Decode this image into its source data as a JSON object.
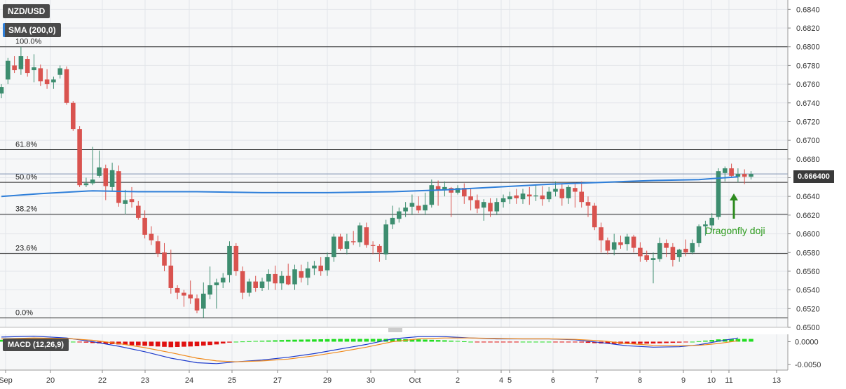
{
  "header": {
    "symbol": "NZD/USD",
    "indicator": "SMA (200,0)",
    "macd": "MACD (12,26,9)"
  },
  "last_price": "0.666400",
  "annotation": "Dragonfly doji",
  "colors": {
    "bull": "#3d8d6f",
    "bear": "#d9534f",
    "sma": "#2f7fd9",
    "macd_line": "#1e3ccc",
    "signal_line": "#f08a1c",
    "hist_pos": "#22dd22",
    "hist_neg": "#e01010",
    "arrow": "#2e8b1f"
  },
  "chart_data": {
    "type": "candlestick",
    "price_axis": {
      "ylim": [
        0.65,
        0.685
      ],
      "ticks": [
        "0.6500",
        "0.6520",
        "0.6540",
        "0.6560",
        "0.6580",
        "0.6600",
        "0.6620",
        "0.6640",
        "0.6660",
        "0.6680",
        "0.6700",
        "0.6720",
        "0.6740",
        "0.6760",
        "0.6780",
        "0.6800",
        "0.6820",
        "0.6840"
      ]
    },
    "macd_axis": {
      "ylim": [
        -0.0062,
        0.0016
      ],
      "ticks": [
        "0.0000",
        "-0.0050"
      ]
    },
    "x_ticks": [
      "Sep",
      "20",
      "22",
      "23",
      "24",
      "25",
      "27",
      "29",
      "30",
      "Oct",
      "2",
      "4",
      "5",
      "6",
      "7",
      "8",
      "9",
      "10",
      "11",
      "13"
    ],
    "fibonacci": [
      {
        "label": "100.0%",
        "price": 0.68
      },
      {
        "label": "61.8%",
        "price": 0.669
      },
      {
        "label": "50.0%",
        "price": 0.6655
      },
      {
        "label": "38.2%",
        "price": 0.6621
      },
      {
        "label": "23.6%",
        "price": 0.6579
      },
      {
        "label": "0.0%",
        "price": 0.651
      }
    ],
    "current_price": 0.6664,
    "candles": [
      [
        0.675,
        0.676,
        0.6745,
        0.6757
      ],
      [
        0.6765,
        0.6788,
        0.676,
        0.6785
      ],
      [
        0.678,
        0.679,
        0.6772,
        0.6775
      ],
      [
        0.6776,
        0.68,
        0.677,
        0.679
      ],
      [
        0.6787,
        0.679,
        0.6768,
        0.6772
      ],
      [
        0.6775,
        0.6792,
        0.6762,
        0.6778
      ],
      [
        0.6777,
        0.6781,
        0.6758,
        0.6763
      ],
      [
        0.6765,
        0.6776,
        0.6755,
        0.676
      ],
      [
        0.6762,
        0.6768,
        0.6755,
        0.6765
      ],
      [
        0.677,
        0.678,
        0.6766,
        0.6777
      ],
      [
        0.6776,
        0.6779,
        0.6738,
        0.674
      ],
      [
        0.674,
        0.6742,
        0.671,
        0.6712
      ],
      [
        0.6712,
        0.6715,
        0.665,
        0.6652
      ],
      [
        0.6652,
        0.666,
        0.665,
        0.6654
      ],
      [
        0.6654,
        0.6693,
        0.6652,
        0.6658
      ],
      [
        0.6662,
        0.6689,
        0.666,
        0.6671
      ],
      [
        0.667,
        0.6674,
        0.6636,
        0.6651
      ],
      [
        0.665,
        0.6676,
        0.6645,
        0.6668
      ],
      [
        0.6667,
        0.6673,
        0.6629,
        0.6633
      ],
      [
        0.6632,
        0.6647,
        0.6621,
        0.6636
      ],
      [
        0.6637,
        0.665,
        0.6628,
        0.6634
      ],
      [
        0.663,
        0.6635,
        0.6615,
        0.6617
      ],
      [
        0.6617,
        0.6625,
        0.6595,
        0.6599
      ],
      [
        0.66,
        0.6608,
        0.6588,
        0.6593
      ],
      [
        0.6592,
        0.6598,
        0.6575,
        0.6579
      ],
      [
        0.658,
        0.659,
        0.656,
        0.6566
      ],
      [
        0.6566,
        0.6583,
        0.6536,
        0.6542
      ],
      [
        0.6542,
        0.6545,
        0.653,
        0.6537
      ],
      [
        0.6537,
        0.654,
        0.6522,
        0.6534
      ],
      [
        0.6535,
        0.655,
        0.6525,
        0.6531
      ],
      [
        0.6531,
        0.6535,
        0.6515,
        0.6518
      ],
      [
        0.652,
        0.6548,
        0.651,
        0.6536
      ],
      [
        0.6535,
        0.6565,
        0.653,
        0.6545
      ],
      [
        0.6545,
        0.6552,
        0.652,
        0.6548
      ],
      [
        0.6548,
        0.6558,
        0.6542,
        0.6553
      ],
      [
        0.6556,
        0.6592,
        0.6548,
        0.6587
      ],
      [
        0.6587,
        0.659,
        0.6555,
        0.656
      ],
      [
        0.656,
        0.6565,
        0.653,
        0.6537
      ],
      [
        0.6537,
        0.6552,
        0.6533,
        0.6549
      ],
      [
        0.6549,
        0.6555,
        0.6538,
        0.6542
      ],
      [
        0.6542,
        0.6553,
        0.6539,
        0.6549
      ],
      [
        0.6549,
        0.6562,
        0.654,
        0.6557
      ],
      [
        0.6557,
        0.6566,
        0.654,
        0.6547
      ],
      [
        0.6547,
        0.656,
        0.654,
        0.6555
      ],
      [
        0.6555,
        0.6568,
        0.6545,
        0.6546
      ],
      [
        0.6546,
        0.6567,
        0.654,
        0.6562
      ],
      [
        0.656,
        0.6567,
        0.6548,
        0.6553
      ],
      [
        0.6553,
        0.657,
        0.6545,
        0.6563
      ],
      [
        0.6563,
        0.6571,
        0.6556,
        0.6566
      ],
      [
        0.6566,
        0.6575,
        0.6555,
        0.656
      ],
      [
        0.6561,
        0.658,
        0.6555,
        0.6575
      ],
      [
        0.6575,
        0.66,
        0.657,
        0.6597
      ],
      [
        0.6597,
        0.66,
        0.6582,
        0.6584
      ],
      [
        0.6584,
        0.66,
        0.6578,
        0.6592
      ],
      [
        0.6592,
        0.6603,
        0.6588,
        0.6591
      ],
      [
        0.6591,
        0.6612,
        0.6586,
        0.6609
      ],
      [
        0.6607,
        0.6612,
        0.6585,
        0.6588
      ],
      [
        0.6588,
        0.6592,
        0.6578,
        0.6587
      ],
      [
        0.6587,
        0.6589,
        0.657,
        0.658
      ],
      [
        0.6578,
        0.6615,
        0.6572,
        0.661
      ],
      [
        0.661,
        0.663,
        0.6605,
        0.6617
      ],
      [
        0.6616,
        0.6628,
        0.6612,
        0.6624
      ],
      [
        0.6624,
        0.6634,
        0.6618,
        0.6628
      ],
      [
        0.6629,
        0.6642,
        0.662,
        0.6633
      ],
      [
        0.663,
        0.664,
        0.6622,
        0.6625
      ],
      [
        0.6625,
        0.6644,
        0.662,
        0.6631
      ],
      [
        0.6631,
        0.6658,
        0.6628,
        0.6652
      ],
      [
        0.6651,
        0.6657,
        0.663,
        0.6647
      ],
      [
        0.6647,
        0.6656,
        0.664,
        0.665
      ],
      [
        0.6649,
        0.665,
        0.6618,
        0.6644
      ],
      [
        0.6644,
        0.6652,
        0.6642,
        0.6649
      ],
      [
        0.6649,
        0.6654,
        0.6632,
        0.664
      ],
      [
        0.664,
        0.6648,
        0.6625,
        0.6636
      ],
      [
        0.6636,
        0.6642,
        0.6622,
        0.6627
      ],
      [
        0.6628,
        0.6637,
        0.6614,
        0.6634
      ],
      [
        0.6633,
        0.6638,
        0.6618,
        0.6624
      ],
      [
        0.6624,
        0.6638,
        0.662,
        0.6634
      ],
      [
        0.6634,
        0.6642,
        0.6628,
        0.6638
      ],
      [
        0.6637,
        0.6645,
        0.6632,
        0.664
      ],
      [
        0.6641,
        0.6648,
        0.6632,
        0.6638
      ],
      [
        0.6637,
        0.6648,
        0.6632,
        0.6643
      ],
      [
        0.6642,
        0.665,
        0.6631,
        0.664
      ],
      [
        0.664,
        0.6652,
        0.6635,
        0.6641
      ],
      [
        0.6641,
        0.6651,
        0.663,
        0.6637
      ],
      [
        0.6637,
        0.665,
        0.6634,
        0.6645
      ],
      [
        0.6645,
        0.6656,
        0.664,
        0.6648
      ],
      [
        0.6648,
        0.6653,
        0.663,
        0.6638
      ],
      [
        0.6638,
        0.6652,
        0.6632,
        0.665
      ],
      [
        0.6649,
        0.6655,
        0.6628,
        0.6645
      ],
      [
        0.6645,
        0.6656,
        0.6628,
        0.6634
      ],
      [
        0.6634,
        0.664,
        0.6618,
        0.663
      ],
      [
        0.663,
        0.6633,
        0.6604,
        0.6607
      ],
      [
        0.6607,
        0.6612,
        0.658,
        0.6593
      ],
      [
        0.6593,
        0.6596,
        0.6578,
        0.6582
      ],
      [
        0.6583,
        0.66,
        0.6577,
        0.6591
      ],
      [
        0.6591,
        0.6598,
        0.6584,
        0.6588
      ],
      [
        0.6589,
        0.66,
        0.6582,
        0.6597
      ],
      [
        0.6597,
        0.6599,
        0.658,
        0.6585
      ],
      [
        0.6585,
        0.6591,
        0.657,
        0.6576
      ],
      [
        0.6577,
        0.6582,
        0.657,
        0.6572
      ],
      [
        0.6572,
        0.658,
        0.6547,
        0.6574
      ],
      [
        0.6573,
        0.6596,
        0.657,
        0.659
      ],
      [
        0.659,
        0.6594,
        0.6575,
        0.6585
      ],
      [
        0.6586,
        0.659,
        0.6565,
        0.6572
      ],
      [
        0.6575,
        0.6584,
        0.657,
        0.6583
      ],
      [
        0.6584,
        0.6594,
        0.6576,
        0.658
      ],
      [
        0.658,
        0.6594,
        0.6578,
        0.659
      ],
      [
        0.659,
        0.661,
        0.6586,
        0.6608
      ],
      [
        0.6608,
        0.6614,
        0.6598,
        0.661
      ],
      [
        0.6609,
        0.6622,
        0.6604,
        0.6617
      ],
      [
        0.6618,
        0.667,
        0.6615,
        0.6667
      ],
      [
        0.6665,
        0.6672,
        0.6656,
        0.667
      ],
      [
        0.667,
        0.6675,
        0.666,
        0.6662
      ],
      [
        0.6661,
        0.667,
        0.6655,
        0.6664
      ],
      [
        0.6664,
        0.6669,
        0.6653,
        0.6661
      ],
      [
        0.6661,
        0.6667,
        0.6658,
        0.6664
      ]
    ],
    "sma": [
      [
        0,
        0.664
      ],
      [
        6,
        0.6643
      ],
      [
        14,
        0.6646
      ],
      [
        21,
        0.6645
      ],
      [
        30,
        0.6645
      ],
      [
        40,
        0.6644
      ],
      [
        50,
        0.6644
      ],
      [
        60,
        0.6645
      ],
      [
        68,
        0.6647
      ],
      [
        76,
        0.665
      ],
      [
        84,
        0.6653
      ],
      [
        92,
        0.6655
      ],
      [
        100,
        0.6657
      ],
      [
        107,
        0.6658
      ],
      [
        113,
        0.6661
      ]
    ],
    "macd_line": [
      [
        0,
        0.001
      ],
      [
        5,
        0.0012
      ],
      [
        10,
        0.0008
      ],
      [
        14,
        0.0
      ],
      [
        18,
        -0.001
      ],
      [
        22,
        -0.0022
      ],
      [
        26,
        -0.0036
      ],
      [
        30,
        -0.0046
      ],
      [
        33,
        -0.0048
      ],
      [
        36,
        -0.0044
      ],
      [
        40,
        -0.004
      ],
      [
        44,
        -0.0034
      ],
      [
        48,
        -0.0026
      ],
      [
        52,
        -0.0016
      ],
      [
        56,
        -0.0006
      ],
      [
        60,
        0.0006
      ],
      [
        64,
        0.0011
      ],
      [
        68,
        0.0011
      ],
      [
        72,
        0.0008
      ],
      [
        76,
        0.0006
      ],
      [
        80,
        0.0006
      ],
      [
        84,
        0.0006
      ],
      [
        88,
        0.0004
      ],
      [
        92,
        -0.0002
      ],
      [
        96,
        -0.0009
      ],
      [
        100,
        -0.0012
      ],
      [
        104,
        -0.0011
      ],
      [
        107,
        -0.0007
      ],
      [
        110,
        0.0001
      ],
      [
        113,
        0.0008
      ]
    ],
    "signal_line": [
      [
        0,
        0.0006
      ],
      [
        5,
        0.0008
      ],
      [
        10,
        0.0007
      ],
      [
        14,
        0.0003
      ],
      [
        18,
        -0.0004
      ],
      [
        22,
        -0.0013
      ],
      [
        26,
        -0.0024
      ],
      [
        30,
        -0.0036
      ],
      [
        33,
        -0.0042
      ],
      [
        36,
        -0.0044
      ],
      [
        40,
        -0.0042
      ],
      [
        44,
        -0.0038
      ],
      [
        48,
        -0.0031
      ],
      [
        52,
        -0.0022
      ],
      [
        56,
        -0.0012
      ],
      [
        60,
        0.0
      ],
      [
        64,
        0.0006
      ],
      [
        68,
        0.0008
      ],
      [
        72,
        0.0008
      ],
      [
        76,
        0.0007
      ],
      [
        80,
        0.0006
      ],
      [
        84,
        0.0006
      ],
      [
        88,
        0.0005
      ],
      [
        92,
        0.0002
      ],
      [
        96,
        -0.0004
      ],
      [
        100,
        -0.0008
      ],
      [
        104,
        -0.0009
      ],
      [
        107,
        -0.0008
      ],
      [
        110,
        -0.0004
      ],
      [
        113,
        0.0002
      ]
    ]
  }
}
